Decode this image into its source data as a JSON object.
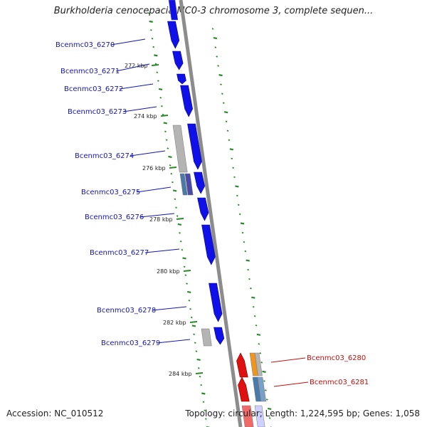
{
  "title": "Burkholderia cenocepacia MC0-3 chromosome 3, complete sequen...",
  "footer": {
    "accession": "Accession: NC_010512",
    "topology": "Topology: circular; Length: 1,224,595 bp; Genes: 1,058"
  },
  "colors": {
    "forward_gene": "#1010e8",
    "reverse_gene": "#e01010",
    "forward_label": "#1515b0",
    "reverse_label": "#c01010",
    "backbone": "#8c8c8c",
    "gc_ticks": "#2a8a2a",
    "cds_gray": "#b4b4b4",
    "orange_feature": "#f0961e",
    "steel_feature": "#4a7aa8"
  },
  "forward_genes": [
    {
      "label": "Bcenmc03_6270"
    },
    {
      "label": "Bcenmc03_6271"
    },
    {
      "label": "Bcenmc03_6272"
    },
    {
      "label": "Bcenmc03_6273"
    },
    {
      "label": "Bcenmc03_6274"
    },
    {
      "label": "Bcenmc03_6275"
    },
    {
      "label": "Bcenmc03_6276"
    },
    {
      "label": "Bcenmc03_6277"
    },
    {
      "label": "Bcenmc03_6278"
    },
    {
      "label": "Bcenmc03_6279"
    }
  ],
  "reverse_genes": [
    {
      "label": "Bcenmc03_6280"
    },
    {
      "label": "Bcenmc03_6281"
    }
  ],
  "scale_ticks": [
    "272 kbp",
    "274 kbp",
    "276 kbp",
    "278 kbp",
    "280 kbp",
    "282 kbp",
    "284 kbp"
  ]
}
